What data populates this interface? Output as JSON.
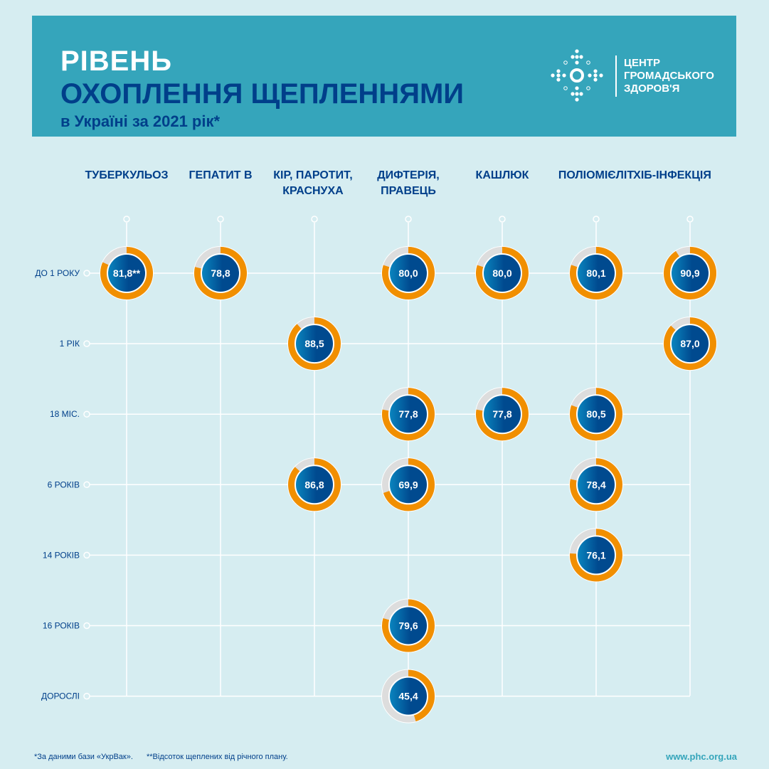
{
  "header": {
    "title_line1": "РІВЕНЬ",
    "title_line2": "ОХОПЛЕННЯ ЩЕПЛЕННЯМИ",
    "subtitle": "в Україні за 2021 рік*"
  },
  "logo": {
    "line1": "ЦЕНТР",
    "line2": "ГРОМАДСЬКОГО",
    "line3": "ЗДОРОВ'Я"
  },
  "colors": {
    "background": "#d6edf1",
    "header": "#35a5bb",
    "title_dark": "#003f8a",
    "ring": "#f18f00",
    "ring_rest": "#dddddd",
    "inner_start": "#0a86c0",
    "inner_end": "#004a8f"
  },
  "chart_data": {
    "type": "donut-grid",
    "columns": [
      [
        "ТУБЕРКУЛЬОЗ"
      ],
      [
        "ГЕПАТИТ В"
      ],
      [
        "КІР, ПАРОТИТ,",
        "КРАСНУХА"
      ],
      [
        "ДИФТЕРІЯ,",
        "ПРАВЕЦЬ"
      ],
      [
        "КАШЛЮК"
      ],
      [
        "ПОЛІОМІЄЛІТ"
      ],
      [
        "ХІБ-ІНФЕКЦІЯ"
      ]
    ],
    "rows": [
      "ДО 1 РОКУ",
      "1 РІК",
      "18 МІС.",
      "6 РОКІВ",
      "14 РОКІВ",
      "16 РОКІВ",
      "ДОРОСЛІ"
    ],
    "unit": "%",
    "points": [
      {
        "row": 0,
        "col": 0,
        "value": 81.8,
        "label": "81,8**"
      },
      {
        "row": 0,
        "col": 1,
        "value": 78.8,
        "label": "78,8"
      },
      {
        "row": 0,
        "col": 3,
        "value": 80.0,
        "label": "80,0"
      },
      {
        "row": 0,
        "col": 4,
        "value": 80.0,
        "label": "80,0"
      },
      {
        "row": 0,
        "col": 5,
        "value": 80.1,
        "label": "80,1"
      },
      {
        "row": 0,
        "col": 6,
        "value": 90.9,
        "label": "90,9"
      },
      {
        "row": 1,
        "col": 2,
        "value": 88.5,
        "label": "88,5"
      },
      {
        "row": 1,
        "col": 6,
        "value": 87.0,
        "label": "87,0"
      },
      {
        "row": 2,
        "col": 3,
        "value": 77.8,
        "label": "77,8"
      },
      {
        "row": 2,
        "col": 4,
        "value": 77.8,
        "label": "77,8"
      },
      {
        "row": 2,
        "col": 5,
        "value": 80.5,
        "label": "80,5"
      },
      {
        "row": 3,
        "col": 2,
        "value": 86.8,
        "label": "86,8"
      },
      {
        "row": 3,
        "col": 3,
        "value": 69.9,
        "label": "69,9"
      },
      {
        "row": 3,
        "col": 5,
        "value": 78.4,
        "label": "78,4"
      },
      {
        "row": 4,
        "col": 5,
        "value": 76.1,
        "label": "76,1"
      },
      {
        "row": 5,
        "col": 3,
        "value": 79.6,
        "label": "79,6"
      },
      {
        "row": 6,
        "col": 3,
        "value": 45.4,
        "label": "45,4"
      }
    ]
  },
  "footer": {
    "note1": "*За даними бази «УкрВак».",
    "note2": "**Відсоток щеплених від річного плану.",
    "url": "www.phc.org.ua"
  }
}
